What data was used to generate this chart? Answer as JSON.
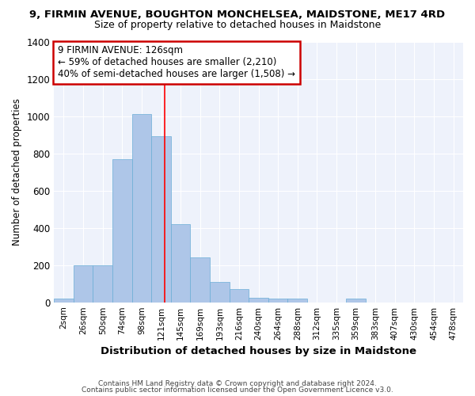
{
  "title": "9, FIRMIN AVENUE, BOUGHTON MONCHELSEA, MAIDSTONE, ME17 4RD",
  "subtitle": "Size of property relative to detached houses in Maidstone",
  "xlabel": "Distribution of detached houses by size in Maidstone",
  "ylabel": "Number of detached properties",
  "bar_labels": [
    "2sqm",
    "26sqm",
    "50sqm",
    "74sqm",
    "98sqm",
    "121sqm",
    "145sqm",
    "169sqm",
    "193sqm",
    "216sqm",
    "240sqm",
    "264sqm",
    "288sqm",
    "312sqm",
    "335sqm",
    "359sqm",
    "383sqm",
    "407sqm",
    "430sqm",
    "454sqm",
    "478sqm"
  ],
  "bar_heights": [
    20,
    200,
    200,
    770,
    1010,
    890,
    420,
    240,
    110,
    70,
    25,
    20,
    20,
    0,
    0,
    20,
    0,
    0,
    0,
    0,
    0
  ],
  "bar_color": "#aec6e8",
  "bar_edgecolor": "#6aaed6",
  "ylim": [
    0,
    1400
  ],
  "yticks": [
    0,
    200,
    400,
    600,
    800,
    1000,
    1200,
    1400
  ],
  "red_line_x": 5.17,
  "annotation_text": "9 FIRMIN AVENUE: 126sqm\n← 59% of detached houses are smaller (2,210)\n40% of semi-detached houses are larger (1,508) →",
  "annotation_box_color": "#ffffff",
  "annotation_box_edgecolor": "#cc0000",
  "background_color": "#eef2fb",
  "grid_color": "#ffffff",
  "footer_line1": "Contains HM Land Registry data © Crown copyright and database right 2024.",
  "footer_line2": "Contains public sector information licensed under the Open Government Licence v3.0."
}
